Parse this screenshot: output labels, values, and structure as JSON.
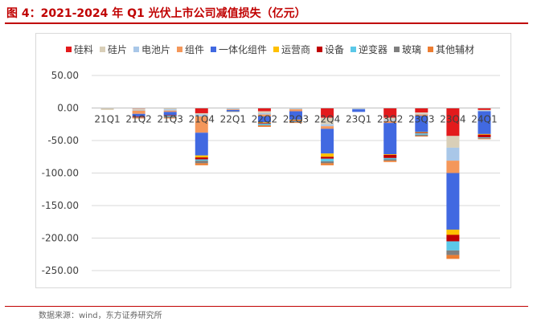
{
  "header": {
    "title": "图 4：2021-2024 年 Q1 光伏上市公司减值损失（亿元）"
  },
  "footer": {
    "source": "数据来源：wind，东方证券研究所"
  },
  "chart_data": {
    "type": "bar",
    "stacked": true,
    "categories": [
      "21Q1",
      "21Q2",
      "21Q3",
      "21Q4",
      "22Q1",
      "22Q2",
      "22Q3",
      "22Q4",
      "23Q1",
      "23Q2",
      "23Q3",
      "23Q4",
      "24Q1"
    ],
    "ylim": [
      -250,
      50
    ],
    "yticks": [
      50,
      0,
      -50,
      -100,
      -150,
      -200,
      -250
    ],
    "ytick_labels": [
      "50.00",
      "0.00",
      "-50.00",
      "-100.00",
      "-150.00",
      "-200.00",
      "-250.00"
    ],
    "grid": true,
    "legend_position": "top",
    "series": [
      {
        "name": "硅料",
        "color": "#e31a1c",
        "values": [
          0,
          -1,
          0,
          -8,
          0,
          -5,
          0,
          -15,
          0,
          -15,
          -7,
          -43,
          -3
        ]
      },
      {
        "name": "硅片",
        "color": "#d9cfb8",
        "values": [
          -3,
          -2,
          -2,
          -2,
          -1,
          -3,
          -1,
          -10,
          -1,
          -3,
          -2,
          -18,
          -1
        ]
      },
      {
        "name": "电池片",
        "color": "#a9c7e8",
        "values": [
          0,
          -1,
          -2,
          -3,
          -1,
          -2,
          -1,
          -3,
          -1,
          -2,
          -1,
          -20,
          -1
        ]
      },
      {
        "name": "组件",
        "color": "#f4975a",
        "values": [
          0,
          -5,
          -2,
          -25,
          -1,
          -3,
          -3,
          -4,
          0,
          -3,
          -2,
          -19,
          0
        ]
      },
      {
        "name": "一体化组件",
        "color": "#4169e1",
        "values": [
          0,
          -4,
          -5,
          -35,
          -2,
          -9,
          -13,
          -38,
          -4,
          -48,
          -25,
          -87,
          -35
        ]
      },
      {
        "name": "运营商",
        "color": "#ffc000",
        "values": [
          0,
          0,
          0,
          -3,
          0,
          -1,
          -1,
          -5,
          0,
          -1,
          -1,
          -8,
          -1
        ]
      },
      {
        "name": "设备",
        "color": "#c00000",
        "values": [
          0,
          -1,
          -1,
          -3,
          0,
          -1,
          -1,
          -3,
          0,
          -5,
          -1,
          -10,
          -4
        ]
      },
      {
        "name": "逆变器",
        "color": "#5bc8e8",
        "values": [
          0,
          0,
          -1,
          -2,
          0,
          -2,
          -1,
          -4,
          0,
          -2,
          -2,
          -14,
          -1
        ]
      },
      {
        "name": "玻璃",
        "color": "#7f7f7f",
        "values": [
          0,
          -1,
          -2,
          -4,
          -1,
          -1,
          -1,
          -3,
          0,
          -2,
          -2,
          -7,
          -1
        ]
      },
      {
        "name": "其他辅材",
        "color": "#ed7d31",
        "values": [
          0,
          -1,
          -1,
          -3,
          0,
          -2,
          -1,
          -3,
          0,
          -2,
          -1,
          -6,
          -1
        ]
      }
    ]
  }
}
